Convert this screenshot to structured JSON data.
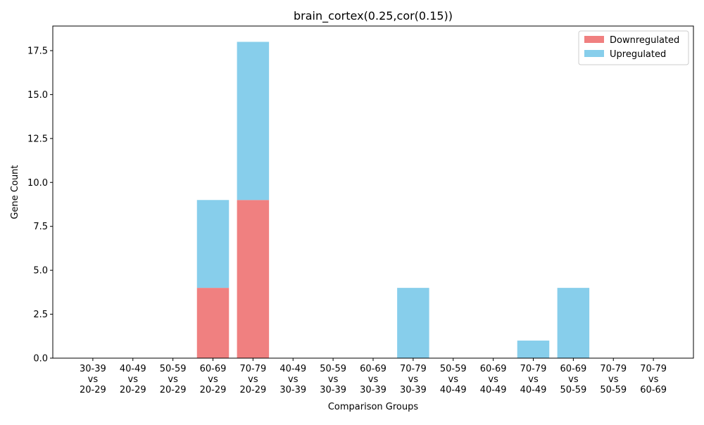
{
  "chart_data": {
    "type": "bar",
    "stacked": true,
    "title": "brain_cortex(0.25,cor(0.15))",
    "xlabel": "Comparison Groups",
    "ylabel": "Gene Count",
    "ylim": [
      0,
      18.9
    ],
    "yticks": [
      0.0,
      2.5,
      5.0,
      7.5,
      10.0,
      12.5,
      15.0,
      17.5
    ],
    "ytick_labels": [
      "0.0",
      "2.5",
      "5.0",
      "7.5",
      "10.0",
      "12.5",
      "15.0",
      "17.5"
    ],
    "grid": false,
    "legend_position": "top-right",
    "categories": [
      [
        "30-39",
        "vs",
        "20-29"
      ],
      [
        "40-49",
        "vs",
        "20-29"
      ],
      [
        "50-59",
        "vs",
        "20-29"
      ],
      [
        "60-69",
        "vs",
        "20-29"
      ],
      [
        "70-79",
        "vs",
        "20-29"
      ],
      [
        "40-49",
        "vs",
        "30-39"
      ],
      [
        "50-59",
        "vs",
        "30-39"
      ],
      [
        "60-69",
        "vs",
        "30-39"
      ],
      [
        "70-79",
        "vs",
        "30-39"
      ],
      [
        "50-59",
        "vs",
        "40-49"
      ],
      [
        "60-69",
        "vs",
        "40-49"
      ],
      [
        "70-79",
        "vs",
        "40-49"
      ],
      [
        "60-69",
        "vs",
        "50-59"
      ],
      [
        "70-79",
        "vs",
        "50-59"
      ],
      [
        "70-79",
        "vs",
        "60-69"
      ]
    ],
    "series": [
      {
        "name": "Downregulated",
        "color": "#f08080",
        "values": [
          0,
          0,
          0,
          4,
          9,
          0,
          0,
          0,
          0,
          0,
          0,
          0,
          0,
          0,
          0
        ]
      },
      {
        "name": "Upregulated",
        "color": "#87ceeb",
        "values": [
          0,
          0,
          0,
          5,
          9,
          0,
          0,
          0,
          4,
          0,
          0,
          1,
          4,
          0,
          0
        ]
      }
    ]
  }
}
